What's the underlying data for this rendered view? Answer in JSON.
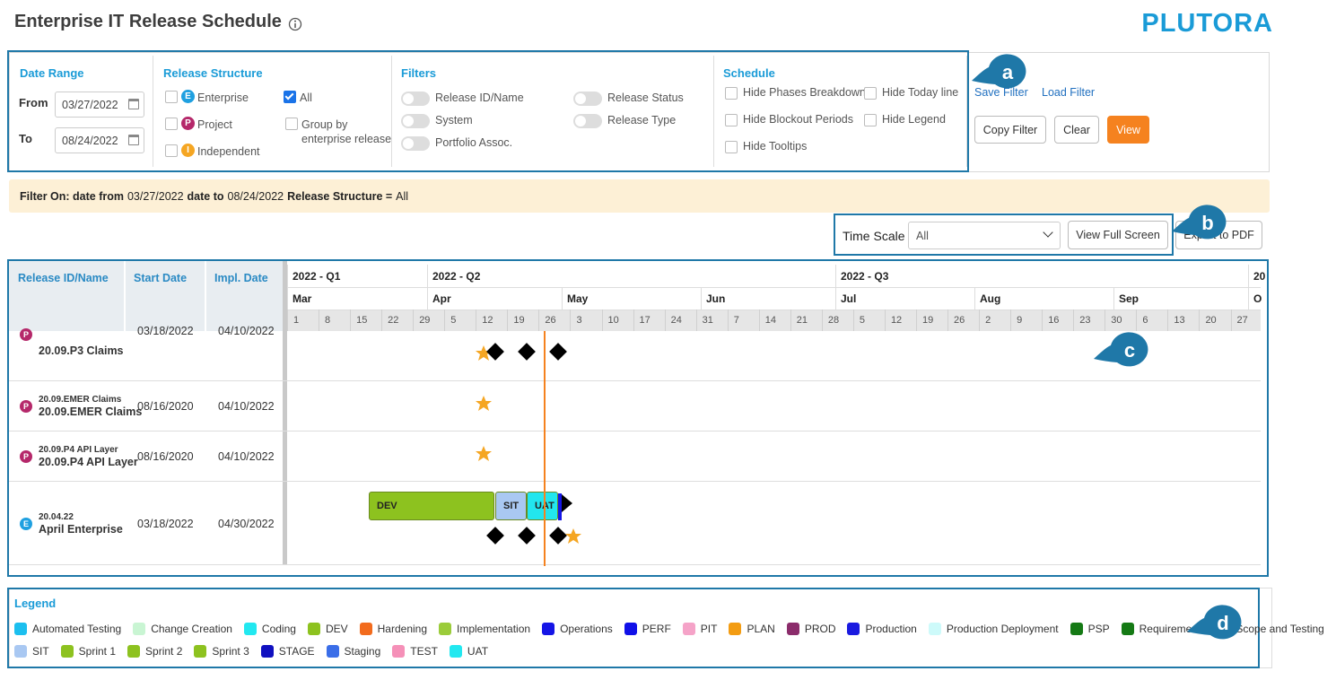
{
  "header": {
    "title": "Enterprise IT Release Schedule",
    "logo": "PLUTORA"
  },
  "filter_panel": {
    "date_range": {
      "title": "Date Range",
      "from_label": "From",
      "from_value": "03/27/2022",
      "to_label": "To",
      "to_value": "08/24/2022"
    },
    "release_structure": {
      "title": "Release Structure",
      "options": [
        {
          "label": "Enterprise",
          "badge": "E",
          "checked": false
        },
        {
          "label": "Project",
          "badge": "P",
          "checked": false
        },
        {
          "label": "Independent",
          "badge": "I",
          "checked": false
        },
        {
          "label": "All",
          "checked": true
        },
        {
          "label": "Group by enterprise release",
          "checked": false
        }
      ]
    },
    "filters": {
      "title": "Filters",
      "toggles": [
        "Release ID/Name",
        "System",
        "Portfolio Assoc.",
        "Release Status",
        "Release Type"
      ]
    },
    "schedule": {
      "title": "Schedule",
      "options": [
        "Hide Phases Breakdown",
        "Hide Blockout Periods",
        "Hide Tooltips",
        "Hide Today line",
        "Hide Legend"
      ]
    },
    "links": [
      "Save Filter",
      "Load Filter"
    ],
    "buttons": [
      "Copy Filter",
      "Clear",
      "View"
    ]
  },
  "filter_summary": [
    {
      "text": "Filter On: date from",
      "bold": true
    },
    {
      "text": "03/27/2022",
      "bold": false
    },
    {
      "text": "date to",
      "bold": true
    },
    {
      "text": "08/24/2022",
      "bold": false
    },
    {
      "text": "Release Structure =",
      "bold": true
    },
    {
      "text": "All",
      "bold": false
    }
  ],
  "toolbar": {
    "time_scale_label": "Time Scale",
    "time_scale_value": "All",
    "buttons": [
      "View Full Screen",
      "Export to PDF"
    ]
  },
  "timeline": {
    "columns": [
      "Release ID/Name",
      "Start Date",
      "Impl. Date"
    ],
    "quarters": [
      "2022 - Q1",
      "2022 - Q2",
      "2022 - Q3",
      "20"
    ],
    "months": [
      "Mar",
      "Apr",
      "May",
      "Jun",
      "Jul",
      "Aug",
      "Sep",
      "O"
    ],
    "weeks": [
      1,
      8,
      15,
      22,
      29,
      5,
      12,
      19,
      26,
      3,
      10,
      17,
      24,
      31,
      7,
      14,
      21,
      28,
      5,
      12,
      19,
      26,
      2,
      9,
      16,
      23,
      30,
      6,
      13,
      20,
      27
    ],
    "rows": [
      {
        "badge": "P",
        "name": "20.09.P3 Claims",
        "start": "03/18/2022",
        "impl": "04/10/2022"
      },
      {
        "badge": "P",
        "code": "20.09.EMER Claims",
        "name": "20.09.EMER Claims",
        "start": "08/16/2020",
        "impl": "04/10/2022"
      },
      {
        "badge": "P",
        "code": "20.09.P4 API Layer",
        "name": "20.09.P4 API Layer",
        "start": "08/16/2020",
        "impl": "04/10/2022"
      },
      {
        "badge": "E",
        "code": "20.04.22",
        "name": "April Enterprise",
        "start": "03/18/2022",
        "impl": "04/30/2022",
        "phases": [
          {
            "name": "DEV",
            "color": "#8dc21f"
          },
          {
            "name": "SIT",
            "color": "#a9c8f2"
          },
          {
            "name": "UAT",
            "color": "#22e6ee"
          }
        ]
      }
    ]
  },
  "legend": {
    "title": "Legend",
    "items": [
      {
        "name": "Automated Testing",
        "color": "#1cbfef"
      },
      {
        "name": "Change Creation",
        "color": "#c9f5d3"
      },
      {
        "name": "Coding",
        "color": "#22e8f0"
      },
      {
        "name": "DEV",
        "color": "#8dc21f"
      },
      {
        "name": "Hardening",
        "color": "#f26b1d"
      },
      {
        "name": "Implementation",
        "color": "#9bcc3a"
      },
      {
        "name": "Operations",
        "color": "#1515e6"
      },
      {
        "name": "PERF",
        "color": "#1010e8"
      },
      {
        "name": "PIT",
        "color": "#f5a3c8"
      },
      {
        "name": "PLAN",
        "color": "#f39c12"
      },
      {
        "name": "PROD",
        "color": "#8b2c6b"
      },
      {
        "name": "Production",
        "color": "#1a1ae0"
      },
      {
        "name": "Production Deployment",
        "color": "#cdfafa"
      },
      {
        "name": "PSP",
        "color": "#157a15"
      },
      {
        "name": "Requirements",
        "color": "#157a15"
      },
      {
        "name": "Scope and Testing",
        "color": "#f26b1d"
      },
      {
        "name": "SIT",
        "color": "#a9c8f2"
      },
      {
        "name": "Sprint 1",
        "color": "#8dc21f"
      },
      {
        "name": "Sprint 2",
        "color": "#8dc21f"
      },
      {
        "name": "Sprint 3",
        "color": "#8dc21f"
      },
      {
        "name": "STAGE",
        "color": "#1010c0"
      },
      {
        "name": "Staging",
        "color": "#3a6ee8"
      },
      {
        "name": "TEST",
        "color": "#f590b8"
      },
      {
        "name": "UAT",
        "color": "#22e8f0"
      }
    ]
  },
  "callouts": [
    "a",
    "b",
    "c",
    "d"
  ]
}
